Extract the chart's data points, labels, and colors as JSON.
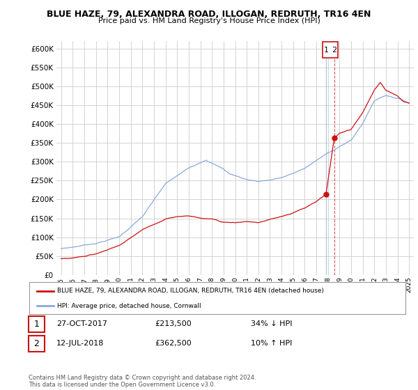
{
  "title": "BLUE HAZE, 79, ALEXANDRA ROAD, ILLOGAN, REDRUTH, TR16 4EN",
  "subtitle": "Price paid vs. HM Land Registry's House Price Index (HPI)",
  "ylim": [
    0,
    620000
  ],
  "yticks": [
    0,
    50000,
    100000,
    150000,
    200000,
    250000,
    300000,
    350000,
    400000,
    450000,
    500000,
    550000,
    600000
  ],
  "hpi_color": "#88aadd",
  "price_color": "#cc1111",
  "transaction_1": {
    "date": "27-OCT-2017",
    "price": 213500,
    "label": "1",
    "hpi_diff": "34% ↓ HPI",
    "x": 2017.83
  },
  "transaction_2": {
    "date": "12-JUL-2018",
    "price": 362500,
    "label": "2",
    "hpi_diff": "10% ↑ HPI",
    "x": 2018.54
  },
  "legend_label_red": "BLUE HAZE, 79, ALEXANDRA ROAD, ILLOGAN, REDRUTH, TR16 4EN (detached house)",
  "legend_label_blue": "HPI: Average price, detached house, Cornwall",
  "footer": "Contains HM Land Registry data © Crown copyright and database right 2024.\nThis data is licensed under the Open Government Licence v3.0.",
  "background_color": "#ffffff",
  "grid_color": "#cccccc",
  "xmin": 1995,
  "xmax": 2025
}
